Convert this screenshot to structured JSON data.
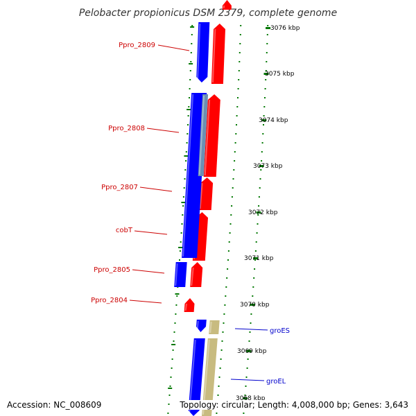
{
  "title": "Pelobacter propionicus DSM 2379, complete genome",
  "footer": {
    "accession": "Accession: NC_008609",
    "topology": "Topology: circular; Length: 4,008,000 bp; Genes: 3,643"
  },
  "colors": {
    "forward_gene": "#ff0000",
    "reverse_gene": "#0000ff",
    "rna_gene": "#6a8fb3",
    "other_feature": "#c8bb80",
    "backbone": "#888888",
    "tick": "#007700",
    "label_left": "#cc0000",
    "label_right": "#0000cc"
  },
  "kbp_ticks": [
    {
      "label": "3076 kbp"
    },
    {
      "label": "3075 kbp"
    },
    {
      "label": "3074 kbp"
    },
    {
      "label": "3073 kbp"
    },
    {
      "label": "3072 kbp"
    },
    {
      "label": "3071 kbp"
    },
    {
      "label": "3070 kbp"
    },
    {
      "label": "3069 kbp"
    },
    {
      "label": "3068 kbp"
    }
  ],
  "gene_labels_left": [
    {
      "label": "Ppro_2809"
    },
    {
      "label": "Ppro_2808"
    },
    {
      "label": "Ppro_2807"
    },
    {
      "label": "cobT"
    },
    {
      "label": "Ppro_2805"
    },
    {
      "label": "Ppro_2804"
    }
  ],
  "gene_labels_right": [
    {
      "label": "groES"
    },
    {
      "label": "groEL"
    }
  ]
}
